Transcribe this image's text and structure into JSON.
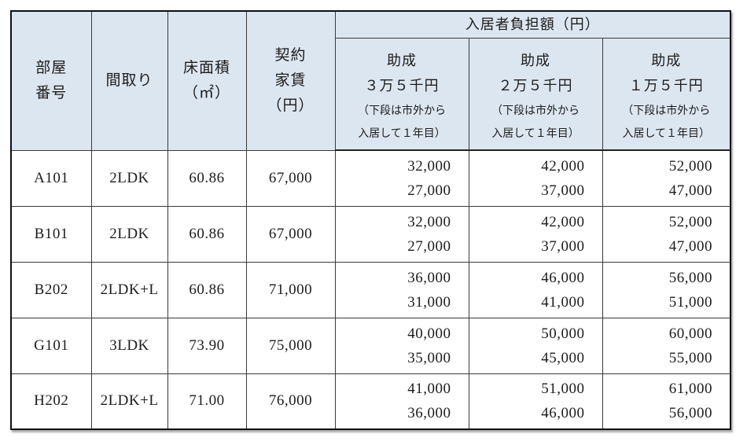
{
  "colors": {
    "header_bg": "#dce6f1",
    "grid_border": "#3a3a3a",
    "outer_border": "#101010",
    "text": "#1c1c1c",
    "row_bg": "#ffffff"
  },
  "header": {
    "room_number": "部屋\n番号",
    "layout": "間取り",
    "floor_area": "床面積\n（㎡）",
    "contract_rent": "契約\n家賃\n（円）",
    "burden_group": "入居者負担額（円）",
    "subsidies": [
      {
        "title": "助成\n３万５千円",
        "note": "（下段は市外から\n入居して１年目）"
      },
      {
        "title": "助成\n２万５千円",
        "note": "（下段は市外から\n入居して１年目）"
      },
      {
        "title": "助成\n１万５千円",
        "note": "（下段は市外から\n入居して１年目）"
      }
    ]
  },
  "rows": [
    {
      "room": "A101",
      "layout": "2LDK",
      "area": "60.86",
      "rent": "67,000",
      "burden": [
        [
          "32,000",
          "27,000"
        ],
        [
          "42,000",
          "37,000"
        ],
        [
          "52,000",
          "47,000"
        ]
      ]
    },
    {
      "room": "B101",
      "layout": "2LDK",
      "area": "60.86",
      "rent": "67,000",
      "burden": [
        [
          "32,000",
          "27,000"
        ],
        [
          "42,000",
          "37,000"
        ],
        [
          "52,000",
          "47,000"
        ]
      ]
    },
    {
      "room": "B202",
      "layout": "2LDK+L",
      "area": "60.86",
      "rent": "71,000",
      "burden": [
        [
          "36,000",
          "31,000"
        ],
        [
          "46,000",
          "41,000"
        ],
        [
          "56,000",
          "51,000"
        ]
      ]
    },
    {
      "room": "G101",
      "layout": "3LDK",
      "area": "73.90",
      "rent": "75,000",
      "burden": [
        [
          "40,000",
          "35,000"
        ],
        [
          "50,000",
          "45,000"
        ],
        [
          "60,000",
          "55,000"
        ]
      ]
    },
    {
      "room": "H202",
      "layout": "2LDK+L",
      "area": "71.00",
      "rent": "76,000",
      "burden": [
        [
          "41,000",
          "36,000"
        ],
        [
          "51,000",
          "46,000"
        ],
        [
          "61,000",
          "56,000"
        ]
      ]
    }
  ]
}
